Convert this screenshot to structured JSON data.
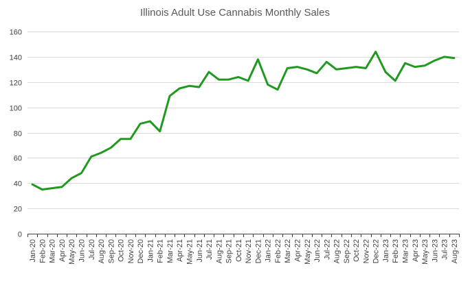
{
  "chart_data": {
    "type": "line",
    "title": "Illinois Adult Use Cannabis Monthly Sales",
    "xlabel": "",
    "ylabel": "",
    "ylim": [
      0,
      160
    ],
    "y_ticks": [
      0,
      20,
      40,
      60,
      80,
      100,
      120,
      140,
      160
    ],
    "grid": true,
    "legend": "none",
    "line_color": "#1f9a1f",
    "categories": [
      "Jan-20",
      "Feb-20",
      "Mar-20",
      "Apr-20",
      "May-20",
      "Jun-20",
      "Jul-20",
      "Aug-20",
      "Sep-20",
      "Oct-20",
      "Nov-20",
      "Dec-20",
      "Jan-21",
      "Feb-21",
      "Mar-21",
      "Apr-21",
      "May-21",
      "Jun-21",
      "Jul-21",
      "Aug-21",
      "Sep-21",
      "Oct-21",
      "Nov-21",
      "Dec-21",
      "Jan-22",
      "Feb-22",
      "Mar-22",
      "Apr-22",
      "May-22",
      "Jun-22",
      "Jul-22",
      "Aug-22",
      "Sep-22",
      "Oct-22",
      "Nov-22",
      "Dec-22",
      "Jan-23",
      "Feb-23",
      "Mar-23",
      "Apr-23",
      "May-23",
      "Jun-23",
      "Jul-23",
      "Aug-23"
    ],
    "series": [
      {
        "name": "Monthly Sales",
        "values": [
          39,
          35,
          36,
          37,
          44,
          48,
          61,
          64,
          68,
          75,
          75,
          87,
          89,
          81,
          109,
          115,
          117,
          116,
          128,
          122,
          122,
          124,
          121,
          138,
          118,
          114,
          131,
          132,
          130,
          127,
          136,
          130,
          131,
          132,
          131,
          144,
          128,
          121,
          135,
          132,
          133,
          137,
          140,
          139
        ]
      }
    ]
  }
}
